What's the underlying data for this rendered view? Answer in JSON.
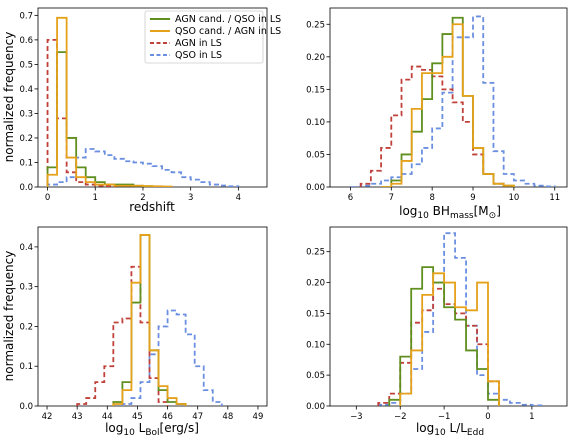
{
  "colors": {
    "agn_cand": "#5f8f1f",
    "qso_cand": "#e5a11a",
    "agn_ls": "#c0403a",
    "qso_ls": "#6b8fe0"
  },
  "legend": [
    {
      "key": "agn_cand",
      "label": "AGN cand. / QSO in LS",
      "dashed": false
    },
    {
      "key": "qso_cand",
      "label": "QSO cand. / AGN in LS",
      "dashed": false
    },
    {
      "key": "agn_ls",
      "label": "AGN in LS",
      "dashed": true
    },
    {
      "key": "qso_ls",
      "label": "QSO in LS",
      "dashed": true
    }
  ],
  "chart_data": [
    {
      "id": "redshift",
      "type": "step-histogram",
      "xlabel": "redshift",
      "ylabel": "normalized frequency",
      "xlim": [
        -0.2,
        4.6
      ],
      "ylim": [
        0,
        0.73
      ],
      "xticks": [
        0,
        1,
        2,
        3,
        4
      ],
      "yticks": [
        0.0,
        0.1,
        0.2,
        0.3,
        0.4,
        0.5,
        0.6,
        0.7
      ],
      "ytick_labels": [
        "0.0",
        "0.1",
        "0.2",
        "0.3",
        "0.4",
        "0.5",
        "0.6",
        "0.7"
      ],
      "legend_position": "top-right",
      "series": [
        {
          "key": "agn_cand",
          "edges": [
            0,
            0.2,
            0.4,
            0.6,
            0.8,
            1.0,
            1.2,
            1.4,
            1.6,
            1.8,
            2.0,
            2.2
          ],
          "values": [
            0.08,
            0.55,
            0.2,
            0.08,
            0.04,
            0.02,
            0.01,
            0.01,
            0.01,
            0.005,
            0.003
          ]
        },
        {
          "key": "qso_cand",
          "edges": [
            0,
            0.2,
            0.4,
            0.6,
            0.8,
            1.0,
            1.2,
            1.4,
            1.6,
            1.8,
            2.0,
            2.2,
            2.4,
            2.6
          ],
          "values": [
            0.05,
            0.69,
            0.12,
            0.04,
            0.02,
            0.01,
            0.01,
            0.005,
            0.005,
            0.005,
            0.004,
            0.003,
            0.002
          ]
        },
        {
          "key": "agn_ls",
          "edges": [
            0,
            0.2,
            0.4,
            0.6,
            0.8,
            1.0,
            1.2,
            1.4
          ],
          "values": [
            0.6,
            0.28,
            0.06,
            0.02,
            0.01,
            0.005,
            0.003
          ]
        },
        {
          "key": "qso_ls",
          "edges": [
            0,
            0.2,
            0.4,
            0.6,
            0.8,
            1.0,
            1.2,
            1.4,
            1.6,
            1.8,
            2.0,
            2.2,
            2.4,
            2.6,
            2.8,
            3.0,
            3.2,
            3.4,
            3.6,
            3.8,
            4.0
          ],
          "values": [
            0.01,
            0.02,
            0.04,
            0.12,
            0.155,
            0.145,
            0.13,
            0.115,
            0.105,
            0.1,
            0.095,
            0.085,
            0.07,
            0.06,
            0.04,
            0.03,
            0.02,
            0.01,
            0.006,
            0.003
          ]
        }
      ]
    },
    {
      "id": "bhmass",
      "type": "step-histogram",
      "xlabel_main": "log",
      "xlabel_sub": "10",
      "xlabel_rest": " BH",
      "xlabel_sub2": "mass",
      "xlabel_tail": "[M",
      "xlabel_sub3": "⊙",
      "xlabel_end": "]",
      "ylabel": "",
      "xlim": [
        5.5,
        11.3
      ],
      "ylim": [
        0,
        0.275
      ],
      "xticks": [
        6,
        7,
        8,
        9,
        10,
        11
      ],
      "yticks": [
        0.0,
        0.05,
        0.1,
        0.15,
        0.2,
        0.25
      ],
      "ytick_labels": [
        "0.00",
        "0.05",
        "0.10",
        "0.15",
        "0.20",
        "0.25"
      ],
      "series": [
        {
          "key": "agn_cand",
          "edges": [
            6.75,
            7.0,
            7.25,
            7.5,
            7.75,
            8.0,
            8.25,
            8.5,
            8.75,
            9.0,
            9.25,
            9.5,
            9.75,
            10.0
          ],
          "values": [
            0.0,
            0.01,
            0.05,
            0.085,
            0.135,
            0.19,
            0.235,
            0.26,
            0.14,
            0.06,
            0.02,
            0.005,
            0.002
          ]
        },
        {
          "key": "qso_cand",
          "edges": [
            6.75,
            7.0,
            7.25,
            7.5,
            7.75,
            8.0,
            8.25,
            8.5,
            8.75,
            9.0,
            9.25,
            9.5,
            9.75,
            10.0
          ],
          "values": [
            0.0,
            0.005,
            0.04,
            0.12,
            0.175,
            0.175,
            0.2,
            0.25,
            0.14,
            0.06,
            0.02,
            0.005,
            0.002
          ]
        },
        {
          "key": "agn_ls",
          "edges": [
            6.25,
            6.5,
            6.75,
            7.0,
            7.25,
            7.5,
            7.75,
            8.0,
            8.25,
            8.5,
            8.75,
            9.0,
            9.25,
            9.5,
            9.75
          ],
          "values": [
            0.005,
            0.025,
            0.06,
            0.11,
            0.165,
            0.185,
            0.18,
            0.17,
            0.15,
            0.13,
            0.1,
            0.05,
            0.02,
            0.005
          ]
        },
        {
          "key": "qso_ls",
          "edges": [
            6.0,
            6.25,
            6.5,
            6.75,
            7.0,
            7.25,
            7.5,
            7.75,
            8.0,
            8.25,
            8.5,
            8.75,
            9.0,
            9.25,
            9.5,
            9.75,
            10.0,
            10.25,
            10.5,
            10.75,
            11.0
          ],
          "values": [
            0.0,
            0.002,
            0.005,
            0.01,
            0.015,
            0.02,
            0.035,
            0.06,
            0.09,
            0.145,
            0.23,
            0.23,
            0.262,
            0.16,
            0.055,
            0.02,
            0.01,
            0.005,
            0.002,
            0.001
          ]
        }
      ]
    },
    {
      "id": "lbol",
      "type": "step-histogram",
      "xlabel_main": "log",
      "xlabel_sub": "10",
      "xlabel_rest": " L",
      "xlabel_sub2": "Bol",
      "xlabel_tail": "[erg/s]",
      "ylabel": "normalized frequency",
      "xlim": [
        41.7,
        49.3
      ],
      "ylim": [
        0,
        0.45
      ],
      "xticks": [
        42,
        43,
        44,
        45,
        46,
        47,
        48,
        49
      ],
      "yticks": [
        0.0,
        0.1,
        0.2,
        0.3,
        0.4
      ],
      "ytick_labels": [
        "0.0",
        "0.1",
        "0.2",
        "0.3",
        "0.4"
      ],
      "series": [
        {
          "key": "agn_cand",
          "edges": [
            44.2,
            44.5,
            44.8,
            45.1,
            45.4,
            45.7,
            46.0,
            46.3,
            46.6
          ],
          "values": [
            0.01,
            0.06,
            0.26,
            0.43,
            0.14,
            0.04,
            0.01,
            0.005
          ]
        },
        {
          "key": "qso_cand",
          "edges": [
            44.2,
            44.5,
            44.8,
            45.1,
            45.4,
            45.7,
            46.0,
            46.3,
            46.6
          ],
          "values": [
            0.005,
            0.04,
            0.31,
            0.43,
            0.14,
            0.05,
            0.02,
            0.005
          ]
        },
        {
          "key": "agn_ls",
          "edges": [
            43.0,
            43.3,
            43.6,
            43.9,
            44.2,
            44.5,
            44.8,
            45.1,
            45.4,
            45.7,
            46.0
          ],
          "values": [
            0.005,
            0.02,
            0.06,
            0.1,
            0.21,
            0.22,
            0.35,
            0.21,
            0.07,
            0.01
          ]
        },
        {
          "key": "qso_ls",
          "edges": [
            44.5,
            44.8,
            45.1,
            45.4,
            45.7,
            46.0,
            46.3,
            46.6,
            46.9,
            47.2,
            47.5,
            47.8
          ],
          "values": [
            0.005,
            0.02,
            0.06,
            0.13,
            0.2,
            0.24,
            0.23,
            0.18,
            0.1,
            0.04,
            0.01
          ]
        }
      ]
    },
    {
      "id": "eddington",
      "type": "step-histogram",
      "xlabel_main": "log",
      "xlabel_sub": "10",
      "xlabel_rest": " L/L",
      "xlabel_sub2": "Edd",
      "xlabel_tail": "",
      "ylabel": "",
      "xlim": [
        -3.6,
        1.8
      ],
      "ylim": [
        0,
        0.29
      ],
      "xticks": [
        -3,
        -2,
        -1,
        0,
        1
      ],
      "xtick_labels": [
        "−3",
        "−2",
        "−1",
        "0",
        "1"
      ],
      "yticks": [
        0.0,
        0.05,
        0.1,
        0.15,
        0.2,
        0.25
      ],
      "ytick_labels": [
        "0.00",
        "0.05",
        "0.10",
        "0.15",
        "0.20",
        "0.25"
      ],
      "series": [
        {
          "key": "agn_cand",
          "edges": [
            -2.25,
            -2.0,
            -1.75,
            -1.5,
            -1.25,
            -1.0,
            -0.75,
            -0.5,
            -0.25,
            0.0,
            0.25
          ],
          "values": [
            0.01,
            0.08,
            0.19,
            0.225,
            0.2,
            0.16,
            0.14,
            0.09,
            0.06,
            0.01
          ]
        },
        {
          "key": "qso_cand",
          "edges": [
            -2.0,
            -1.75,
            -1.5,
            -1.25,
            -1.0,
            -0.75,
            -0.5,
            -0.25,
            0.0,
            0.25
          ],
          "values": [
            0.02,
            0.09,
            0.18,
            0.215,
            0.2,
            0.16,
            0.155,
            0.2,
            0.04
          ]
        },
        {
          "key": "agn_ls",
          "edges": [
            -2.5,
            -2.25,
            -2.0,
            -1.75,
            -1.5,
            -1.25,
            -1.0,
            -0.75,
            -0.5,
            -0.25,
            0.0,
            0.25
          ],
          "values": [
            0.005,
            0.02,
            0.07,
            0.135,
            0.155,
            0.19,
            0.165,
            0.15,
            0.13,
            0.1,
            0.04
          ]
        },
        {
          "key": "qso_ls",
          "edges": [
            -2.5,
            -2.25,
            -2.0,
            -1.75,
            -1.5,
            -1.25,
            -1.0,
            -0.75,
            -0.5,
            -0.25,
            0.0,
            0.25,
            0.5,
            0.75,
            1.0,
            1.25
          ],
          "values": [
            0.002,
            0.005,
            0.02,
            0.06,
            0.12,
            0.2,
            0.28,
            0.24,
            0.13,
            0.05,
            0.02,
            0.01,
            0.005,
            0.002,
            0.001
          ]
        }
      ]
    }
  ]
}
